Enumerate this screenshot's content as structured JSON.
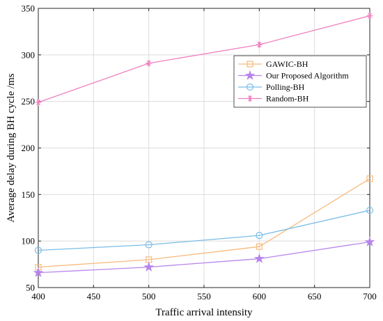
{
  "chart_data": {
    "type": "line",
    "title": "",
    "xlabel": "Traffic arrival intensity",
    "ylabel": "Average delay during BH cycle /ms",
    "x": [
      400,
      500,
      600,
      700
    ],
    "xlim": [
      400,
      700
    ],
    "ylim": [
      50,
      350
    ],
    "xticks": [
      400,
      450,
      500,
      550,
      600,
      650,
      700
    ],
    "yticks": [
      50,
      100,
      150,
      200,
      250,
      300,
      350
    ],
    "grid": true,
    "legend_position": "upper-right",
    "series": [
      {
        "name": "GAWIC-BH",
        "marker": "square",
        "color": "#f7b97a",
        "values": [
          72,
          80,
          94,
          167
        ]
      },
      {
        "name": "Our Proposed Algorithm",
        "marker": "star",
        "color": "#b685ea",
        "values": [
          66,
          72,
          81,
          99
        ]
      },
      {
        "name": "Polling-BH",
        "marker": "circle",
        "color": "#79bde8",
        "values": [
          90,
          96,
          106,
          133
        ]
      },
      {
        "name": "Random-BH",
        "marker": "asterisk",
        "color": "#ef7fbf",
        "values": [
          249,
          291,
          311,
          342
        ]
      }
    ]
  }
}
